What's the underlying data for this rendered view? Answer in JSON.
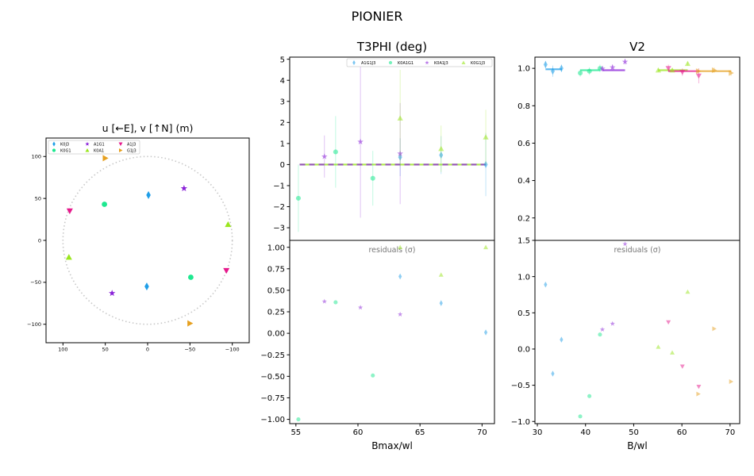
{
  "figure": {
    "suptitle": "PIONIER"
  },
  "chart_data": [
    {
      "id": "uv",
      "type": "scatter",
      "title": "u [←E], v [↑N] (m)",
      "xlim": [
        120,
        -120
      ],
      "ylim": [
        -122,
        122
      ],
      "xticks": [
        100,
        50,
        0,
        -50,
        -100
      ],
      "yticks": [
        100,
        50,
        0,
        -50,
        -100
      ],
      "circle_radius": 100,
      "legend": {
        "placement": "top-left",
        "entries": [
          {
            "label": "K0J3",
            "marker": "diamond",
            "color": "#1f9ee8"
          },
          {
            "label": "K0G1",
            "marker": "circle",
            "color": "#1ee890"
          },
          {
            "label": "A1G1",
            "marker": "star",
            "color": "#8a22d8"
          },
          {
            "label": "K0A1",
            "marker": "triangle-up",
            "color": "#9ae61e"
          },
          {
            "label": "A1J3",
            "marker": "triangle-down",
            "color": "#e6198c"
          },
          {
            "label": "G1J3",
            "marker": "triangle-right",
            "color": "#e6a020"
          }
        ]
      },
      "series": [
        {
          "label": "K0J3",
          "marker": "diamond",
          "color": "#1f9ee8",
          "points": [
            [
              -1,
              54
            ],
            [
              1,
              -55
            ]
          ]
        },
        {
          "label": "K0G1",
          "marker": "circle",
          "color": "#1ee890",
          "points": [
            [
              51,
              43
            ],
            [
              -51,
              -44
            ]
          ]
        },
        {
          "label": "A1G1",
          "marker": "star",
          "color": "#8a22d8",
          "points": [
            [
              -43,
              62
            ],
            [
              42,
              -63
            ]
          ]
        },
        {
          "label": "K0A1",
          "marker": "triangle-up",
          "color": "#9ae61e",
          "points": [
            [
              -95,
              19
            ],
            [
              93,
              -20
            ]
          ]
        },
        {
          "label": "A1J3",
          "marker": "triangle-down",
          "color": "#e6198c",
          "points": [
            [
              92,
              35
            ],
            [
              -93,
              -36
            ]
          ]
        },
        {
          "label": "G1J3",
          "marker": "triangle-right",
          "color": "#e6a020",
          "points": [
            [
              50,
              98
            ],
            [
              -50,
              -99
            ]
          ]
        }
      ]
    },
    {
      "id": "t3phi",
      "type": "scatter",
      "title": "T3PHI (deg)",
      "xlabel": "Bmax/wl",
      "xlim": [
        54.5,
        71
      ],
      "ylim": [
        -3.6,
        5.1
      ],
      "xticks": [
        55,
        60,
        65,
        70
      ],
      "yticks": [
        -3,
        -2,
        -1,
        0,
        1,
        2,
        3,
        4,
        5
      ],
      "model_line": {
        "x_range": [
          55.3,
          70.3
        ],
        "y": 0
      },
      "legend": {
        "placement": "top-right",
        "entries": [
          {
            "label": "A1G1J3",
            "marker": "diamond",
            "color": "#1f9ee8"
          },
          {
            "label": "K0A1G1",
            "marker": "circle",
            "color": "#1ee890"
          },
          {
            "label": "K0A1J3",
            "marker": "star",
            "color": "#8a22d8"
          },
          {
            "label": "K0G1J3",
            "marker": "triangle-up",
            "color": "#9ae61e"
          }
        ]
      },
      "series": [
        {
          "label": "A1G1J3",
          "marker": "diamond",
          "color": "#1f9ee8",
          "points": [
            [
              63.4,
              0.35,
              0.9
            ],
            [
              66.7,
              0.45,
              0.9
            ],
            [
              70.3,
              0.0,
              1.5
            ]
          ]
        },
        {
          "label": "K0A1G1",
          "marker": "circle",
          "color": "#1ee890",
          "points": [
            [
              55.2,
              -1.6,
              1.6
            ],
            [
              58.2,
              0.6,
              1.7
            ],
            [
              61.2,
              -0.65,
              1.3
            ]
          ]
        },
        {
          "label": "K0A1J3",
          "marker": "star",
          "color": "#8a22d8",
          "points": [
            [
              57.3,
              0.38,
              1.0
            ],
            [
              60.2,
              1.08,
              3.6
            ],
            [
              63.4,
              0.52,
              2.4
            ]
          ]
        },
        {
          "label": "K0G1J3",
          "marker": "triangle-up",
          "color": "#9ae61e",
          "points": [
            [
              63.4,
              2.2,
              2.3
            ],
            [
              66.7,
              0.75,
              1.1
            ],
            [
              70.3,
              1.3,
              1.3
            ]
          ]
        }
      ]
    },
    {
      "id": "t3phi_res",
      "type": "scatter",
      "annotation": "residuals (σ)",
      "xlim": [
        54.5,
        71
      ],
      "ylim": [
        -1.05,
        1.08
      ],
      "xticks": [
        55,
        60,
        65,
        70
      ],
      "yticks": [
        -1.0,
        -0.75,
        -0.5,
        -0.25,
        0.0,
        0.25,
        0.5,
        0.75,
        1.0
      ],
      "series": [
        {
          "label": "A1G1J3",
          "marker": "diamond",
          "color": "#1f9ee8",
          "points": [
            [
              63.4,
              0.66
            ],
            [
              66.7,
              0.35
            ],
            [
              70.3,
              0.01
            ]
          ]
        },
        {
          "label": "K0A1G1",
          "marker": "circle",
          "color": "#1ee890",
          "points": [
            [
              55.2,
              -1.0
            ],
            [
              58.2,
              0.36
            ],
            [
              61.2,
              -0.49
            ]
          ]
        },
        {
          "label": "K0A1J3",
          "marker": "star",
          "color": "#8a22d8",
          "points": [
            [
              57.3,
              0.37
            ],
            [
              60.2,
              0.3
            ],
            [
              63.4,
              0.22
            ]
          ]
        },
        {
          "label": "K0G1J3",
          "marker": "triangle-up",
          "color": "#9ae61e",
          "points": [
            [
              63.4,
              1.0
            ],
            [
              66.7,
              0.68
            ],
            [
              70.3,
              1.0
            ]
          ]
        }
      ]
    },
    {
      "id": "v2",
      "type": "scatter",
      "title": "V2",
      "xlim": [
        29.5,
        72
      ],
      "ylim": [
        0.08,
        1.06
      ],
      "xticks": [
        30,
        40,
        50,
        60,
        70
      ],
      "yticks": [
        0.2,
        0.4,
        0.6,
        0.8,
        1.0
      ],
      "model_segments": [
        {
          "color": "#1f9ee8",
          "points": [
            [
              31.7,
              0.995
            ],
            [
              35.1,
              0.995
            ]
          ]
        },
        {
          "color": "#1ee890",
          "points": [
            [
              38.9,
              0.99
            ],
            [
              43.0,
              0.99
            ]
          ]
        },
        {
          "color": "#8a22d8",
          "points": [
            [
              43.5,
              0.99
            ],
            [
              48.2,
              0.99
            ]
          ]
        },
        {
          "color": "#9ae61e",
          "points": [
            [
              55.1,
              0.99
            ],
            [
              61.2,
              0.99
            ]
          ]
        },
        {
          "color": "#e6198c",
          "points": [
            [
              57.2,
              0.985
            ],
            [
              63.5,
              0.985
            ]
          ]
        },
        {
          "color": "#e6a020",
          "points": [
            [
              63.4,
              0.985
            ],
            [
              70.2,
              0.985
            ]
          ]
        }
      ],
      "series": [
        {
          "label": "K0J3",
          "marker": "diamond",
          "color": "#1f9ee8",
          "points": [
            [
              31.7,
              1.02,
              0.02
            ],
            [
              33.2,
              0.985,
              0.03
            ],
            [
              35.0,
              1.0,
              0.02
            ]
          ]
        },
        {
          "label": "K0G1",
          "marker": "circle",
          "color": "#1ee890",
          "points": [
            [
              38.9,
              0.975,
              0.02
            ],
            [
              40.8,
              0.985,
              0.02
            ],
            [
              43.0,
              1.0,
              0.02
            ]
          ]
        },
        {
          "label": "A1G1",
          "marker": "star",
          "color": "#8a22d8",
          "points": [
            [
              43.5,
              0.998,
              0.015
            ],
            [
              45.6,
              1.005,
              0.015
            ],
            [
              48.2,
              1.035,
              0.015
            ]
          ]
        },
        {
          "label": "K0A1",
          "marker": "triangle-up",
          "color": "#9ae61e",
          "points": [
            [
              55.1,
              0.99,
              0.01
            ],
            [
              58.0,
              0.99,
              0.01
            ],
            [
              61.2,
              1.025,
              0.01
            ]
          ]
        },
        {
          "label": "A1J3",
          "marker": "triangle-down",
          "color": "#e6198c",
          "points": [
            [
              57.2,
              1.0,
              0.02
            ],
            [
              60.1,
              0.98,
              0.02
            ],
            [
              63.5,
              0.96,
              0.04
            ]
          ]
        },
        {
          "label": "G1J3",
          "marker": "triangle-right",
          "color": "#e6a020",
          "points": [
            [
              63.4,
              0.985,
              0.015
            ],
            [
              66.7,
              0.99,
              0.015
            ],
            [
              70.2,
              0.975,
              0.015
            ]
          ]
        }
      ]
    },
    {
      "id": "v2_res",
      "type": "scatter",
      "annotation": "residuals (σ)",
      "xlabel": "B/wl",
      "xlim": [
        29.5,
        72
      ],
      "ylim": [
        -1.03,
        1.5
      ],
      "xticks": [
        30,
        40,
        50,
        60,
        70
      ],
      "yticks": [
        -1.0,
        -0.5,
        0.0,
        0.5,
        1.0,
        1.5
      ],
      "series": [
        {
          "label": "K0J3",
          "marker": "diamond",
          "color": "#1f9ee8",
          "points": [
            [
              31.7,
              0.89
            ],
            [
              33.2,
              -0.34
            ],
            [
              35.0,
              0.13
            ]
          ]
        },
        {
          "label": "K0G1",
          "marker": "circle",
          "color": "#1ee890",
          "points": [
            [
              38.9,
              -0.93
            ],
            [
              40.8,
              -0.65
            ],
            [
              43.0,
              0.2
            ]
          ]
        },
        {
          "label": "A1G1",
          "marker": "star",
          "color": "#8a22d8",
          "points": [
            [
              43.5,
              0.27
            ],
            [
              45.6,
              0.35
            ],
            [
              48.2,
              1.45
            ]
          ]
        },
        {
          "label": "K0A1",
          "marker": "triangle-up",
          "color": "#9ae61e",
          "points": [
            [
              55.1,
              0.03
            ],
            [
              58.0,
              -0.05
            ],
            [
              61.2,
              0.79
            ]
          ]
        },
        {
          "label": "A1J3",
          "marker": "triangle-down",
          "color": "#e6198c",
          "points": [
            [
              57.2,
              0.37
            ],
            [
              60.1,
              -0.24
            ],
            [
              63.5,
              -0.52
            ]
          ]
        },
        {
          "label": "G1J3",
          "marker": "triangle-right",
          "color": "#e6a020",
          "points": [
            [
              63.4,
              -0.62
            ],
            [
              66.7,
              0.28
            ],
            [
              70.2,
              -0.45
            ]
          ]
        }
      ]
    }
  ]
}
